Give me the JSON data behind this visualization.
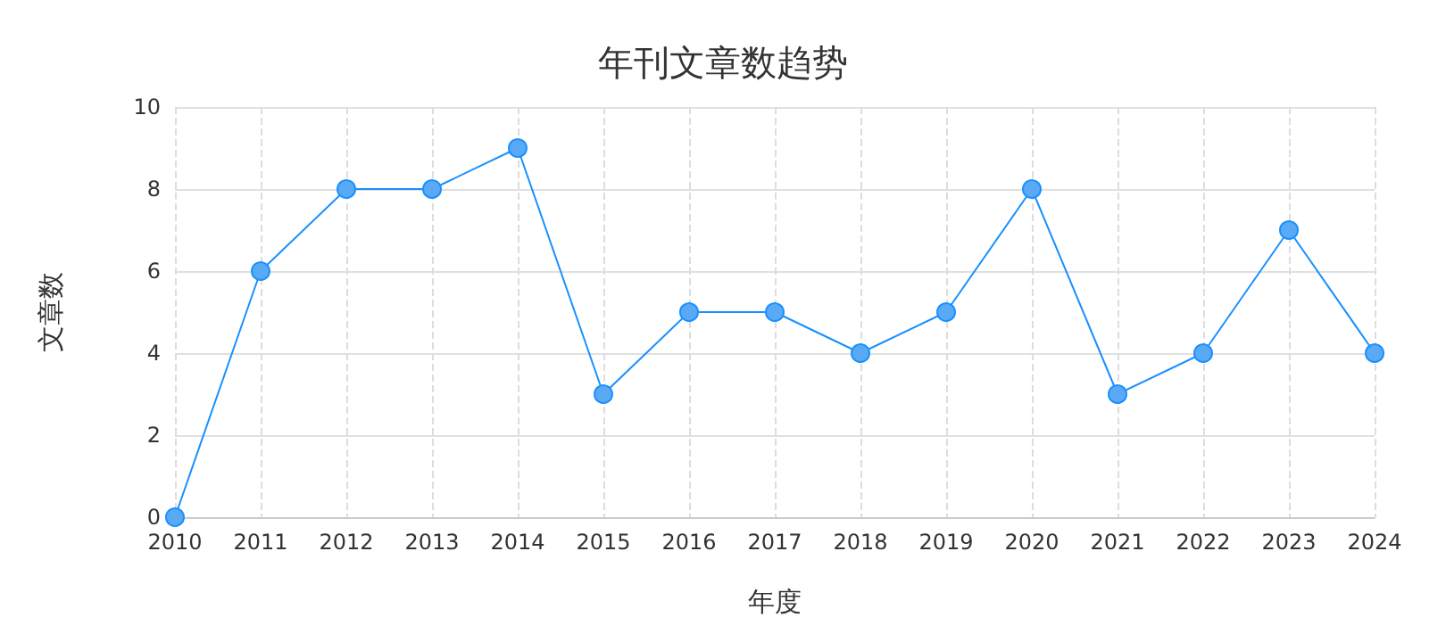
{
  "chart_data": {
    "type": "line",
    "title": "年刊文章数趋势",
    "xlabel": "年度",
    "ylabel": "文章数",
    "categories": [
      "2010",
      "2011",
      "2012",
      "2013",
      "2014",
      "2015",
      "2016",
      "2017",
      "2018",
      "2019",
      "2020",
      "2021",
      "2022",
      "2023",
      "2024"
    ],
    "series": [
      {
        "color": "#1890ff",
        "values": [
          0,
          6,
          8,
          8,
          9,
          3,
          5,
          5,
          4,
          5,
          8,
          3,
          4,
          7,
          4
        ]
      }
    ],
    "ylim": [
      0,
      10
    ],
    "yticks": [
      0,
      2,
      4,
      6,
      8,
      10
    ],
    "grid": true,
    "marker": "circle",
    "line_style": "solid"
  }
}
